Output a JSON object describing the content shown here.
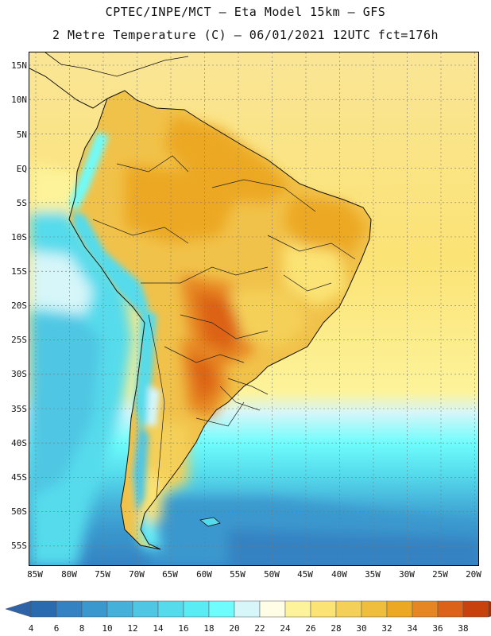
{
  "title_line1": "CPTEC/INPE/MCT  –  Eta Model 15km  –  GFS",
  "title_line2": "2 Metre Temperature (C) – 06/01/2021 12UTC fct=176h",
  "lat_labels": [
    "15N",
    "10N",
    "5N",
    "EQ",
    "5S",
    "10S",
    "15S",
    "20S",
    "25S",
    "30S",
    "35S",
    "40S",
    "45S",
    "50S",
    "55S"
  ],
  "lon_labels": [
    "85W",
    "80W",
    "75W",
    "70W",
    "65W",
    "60W",
    "55W",
    "50W",
    "45W",
    "40W",
    "35W",
    "30W",
    "25W",
    "20W"
  ],
  "colorbar": {
    "labels": [
      "4",
      "6",
      "8",
      "10",
      "12",
      "14",
      "16",
      "18",
      "20",
      "22",
      "24",
      "26",
      "28",
      "30",
      "32",
      "34",
      "36",
      "38"
    ],
    "colors": [
      "#2a6bb0",
      "#3482c2",
      "#3a98ce",
      "#45b0d9",
      "#4fc6e3",
      "#55dbec",
      "#5aecf4",
      "#6efcfc",
      "#d6f6f9",
      "#fffde6",
      "#fdf39a",
      "#fbe375",
      "#f4d058",
      "#eebe3c",
      "#eca823",
      "#e68622",
      "#dc6219",
      "#c8420e",
      "#a32e0a"
    ],
    "under_color": "#2f63a8",
    "over_color": "#a32e0a"
  }
}
